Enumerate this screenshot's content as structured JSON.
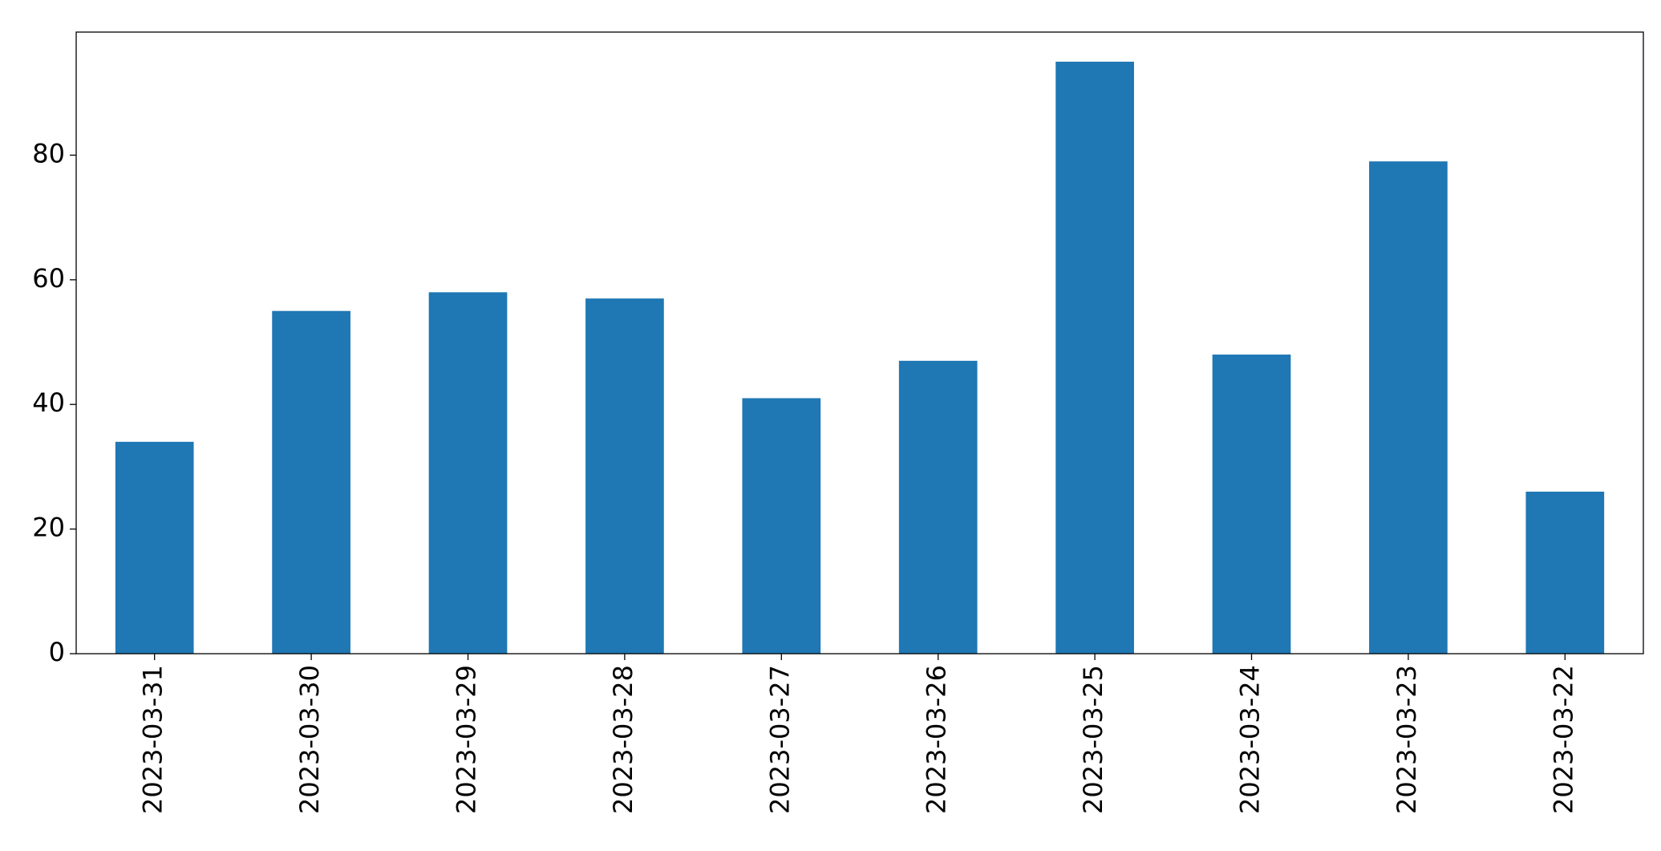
{
  "chart_data": {
    "type": "bar",
    "categories": [
      "2023-03-31",
      "2023-03-30",
      "2023-03-29",
      "2023-03-28",
      "2023-03-27",
      "2023-03-26",
      "2023-03-25",
      "2023-03-24",
      "2023-03-23",
      "2023-03-22"
    ],
    "values": [
      34,
      55,
      58,
      57,
      41,
      47,
      95,
      48,
      79,
      26
    ],
    "color": "#1f77b4",
    "ylim": [
      0,
      99.75
    ],
    "yticks": [
      0,
      20,
      40,
      60,
      80
    ],
    "grid": false
  }
}
